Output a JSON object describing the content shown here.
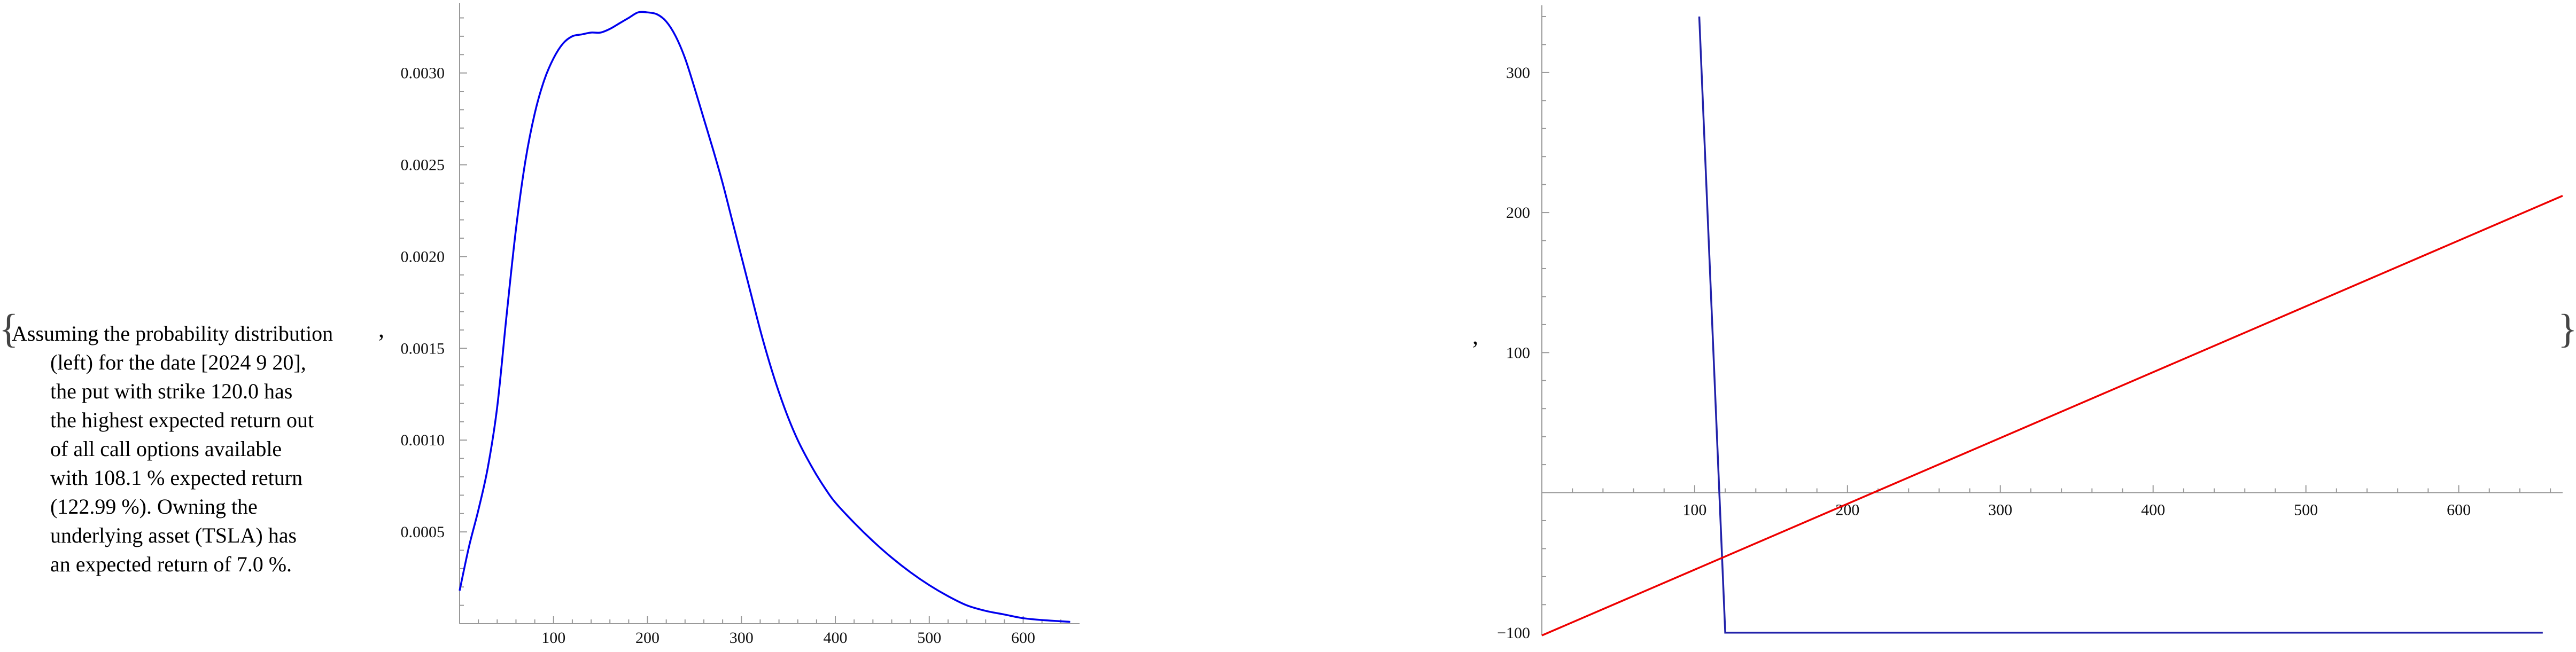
{
  "prefix_brace": "{",
  "suffix_brace": "}",
  "separator": ",",
  "text_lines": [
    "Assuming the probability distribution",
    "(left) for the date [2024 9 20],",
    "the put with strike 120.0 has",
    "the highest expected return out",
    "of all call options available",
    "with 108.1 % expected return",
    "(122.99 %). Owning the",
    "underlying asset (TSLA) has",
    "an expected return of 7.0 %."
  ],
  "chart_data": [
    {
      "type": "line",
      "title": "",
      "xlabel": "",
      "ylabel": "",
      "xlim": [
        0,
        660
      ],
      "ylim": [
        0,
        0.00338
      ],
      "x_ticks": [
        100,
        200,
        300,
        400,
        500,
        600
      ],
      "x_tick_labels": [
        "100",
        "200",
        "300",
        "400",
        "500",
        "600"
      ],
      "y_ticks": [
        0.0005,
        0.001,
        0.0015,
        0.002,
        0.0025,
        0.003
      ],
      "y_tick_labels": [
        "0.0005",
        "0.0010",
        "0.0015",
        "0.0020",
        "0.0025",
        "0.0030"
      ],
      "series": [
        {
          "color": "#0000ee",
          "x": [
            0,
            10,
            20,
            30,
            40,
            50,
            60,
            70,
            80,
            90,
            100,
            110,
            120,
            130,
            140,
            150,
            160,
            170,
            180,
            190,
            200,
            210,
            220,
            230,
            240,
            250,
            260,
            270,
            280,
            290,
            300,
            310,
            320,
            330,
            340,
            350,
            360,
            370,
            380,
            390,
            400,
            420,
            440,
            460,
            480,
            500,
            520,
            540,
            560,
            580,
            600,
            620,
            650
          ],
          "y": [
            0.00018,
            0.00042,
            0.00062,
            0.00085,
            0.00118,
            0.00168,
            0.00215,
            0.00252,
            0.00278,
            0.00296,
            0.00308,
            0.00316,
            0.0032,
            0.00321,
            0.00322,
            0.00322,
            0.00324,
            0.00327,
            0.0033,
            0.00333,
            0.00333,
            0.00332,
            0.00328,
            0.0032,
            0.00308,
            0.00292,
            0.00275,
            0.00258,
            0.0024,
            0.0022,
            0.002,
            0.0018,
            0.0016,
            0.00142,
            0.00126,
            0.00112,
            0.001,
            0.0009,
            0.00081,
            0.00073,
            0.00066,
            0.00055,
            0.00045,
            0.00036,
            0.00028,
            0.00021,
            0.00015,
            0.0001,
            7e-05,
            5e-05,
            3e-05,
            2e-05,
            1e-05
          ]
        }
      ]
    },
    {
      "type": "line",
      "title": "",
      "xlabel": "",
      "ylabel": "",
      "xlim": [
        0,
        668
      ],
      "ylim": [
        -102,
        348
      ],
      "x_ticks": [
        100,
        200,
        300,
        400,
        500,
        600
      ],
      "x_tick_labels": [
        "100",
        "200",
        "300",
        "400",
        "500",
        "600"
      ],
      "y_ticks": [
        -100,
        100,
        200,
        300
      ],
      "y_tick_labels": [
        "-100",
        "100",
        "200",
        "300"
      ],
      "series": [
        {
          "color": "#2222aa",
          "x": [
            103,
            120,
            120,
            655
          ],
          "y": [
            340,
            -100,
            -100,
            -100
          ]
        },
        {
          "color": "#ee0000",
          "x": [
            0,
            668
          ],
          "y": [
            -102,
            212
          ]
        }
      ]
    }
  ]
}
